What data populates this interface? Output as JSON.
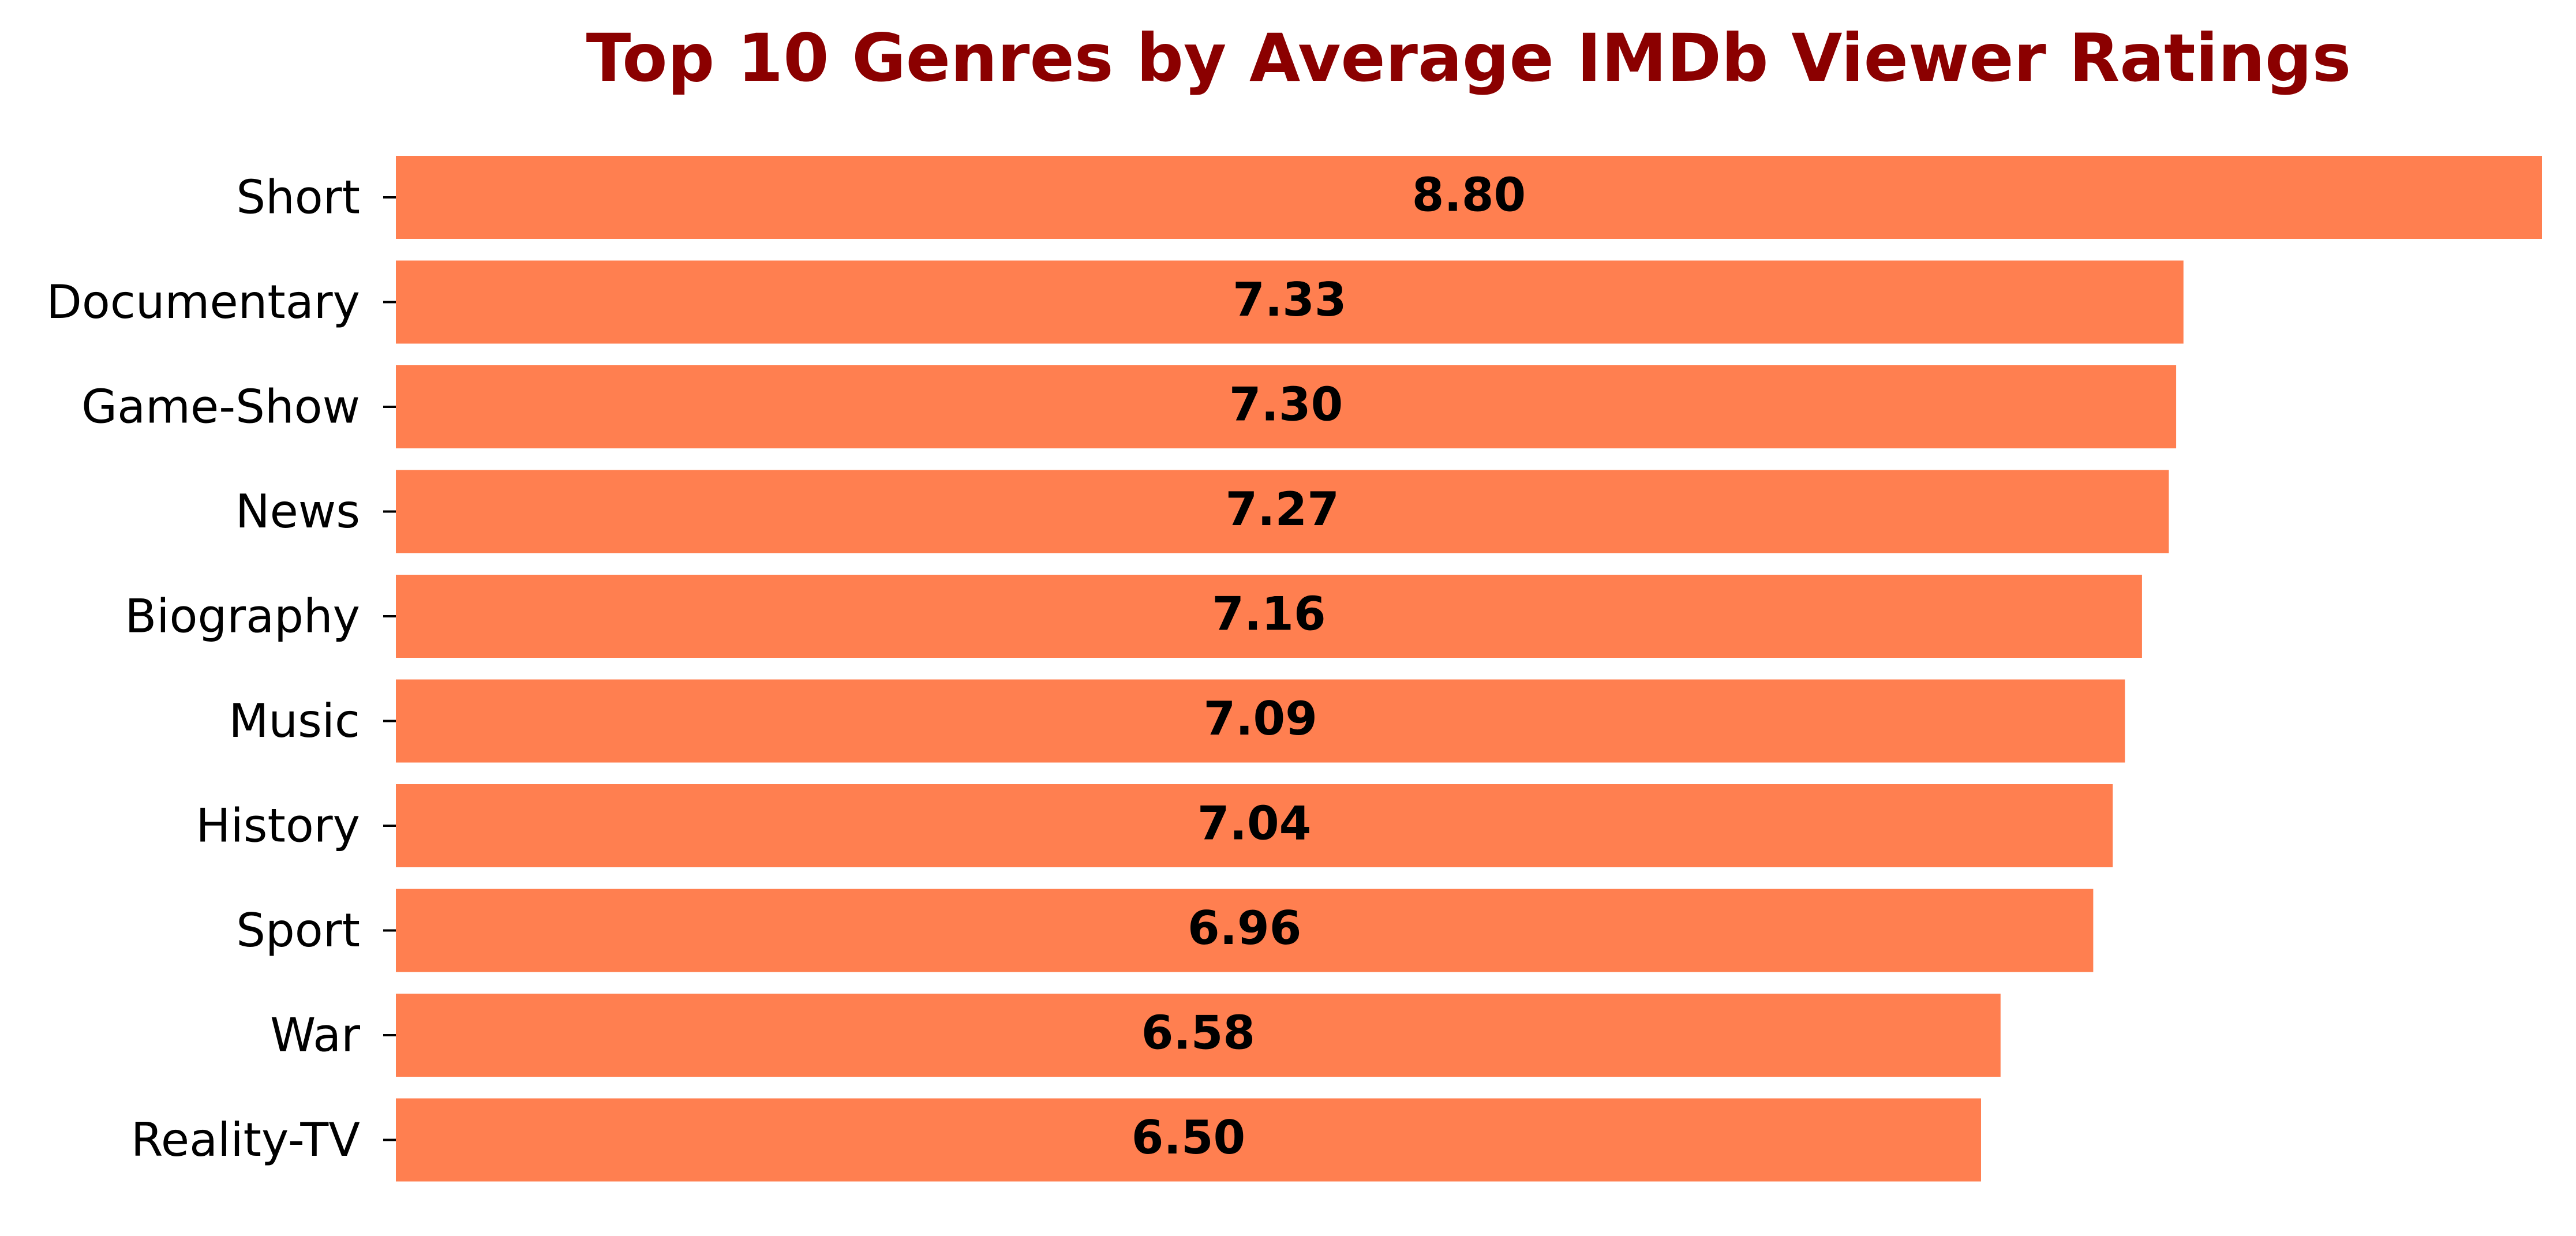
{
  "colors": {
    "bar": "#FF7F50",
    "title": "#8B0000",
    "text": "#000000"
  },
  "chart_data": {
    "type": "bar",
    "orientation": "horizontal",
    "title": "Top 10 Genres by Average IMDb Viewer Ratings",
    "xlabel": "",
    "ylabel": "",
    "categories": [
      "Short",
      "Documentary",
      "Game-Show",
      "News",
      "Biography",
      "Music",
      "History",
      "Sport",
      "War",
      "Reality-TV"
    ],
    "values": [
      8.8,
      7.33,
      7.3,
      7.27,
      7.16,
      7.09,
      7.04,
      6.96,
      6.58,
      6.5
    ],
    "value_labels": [
      "8.80",
      "7.33",
      "7.30",
      "7.27",
      "7.16",
      "7.09",
      "7.04",
      "6.96",
      "6.58",
      "6.50"
    ],
    "xlim": [
      0,
      8.8
    ],
    "grid": false,
    "legend": "none"
  }
}
